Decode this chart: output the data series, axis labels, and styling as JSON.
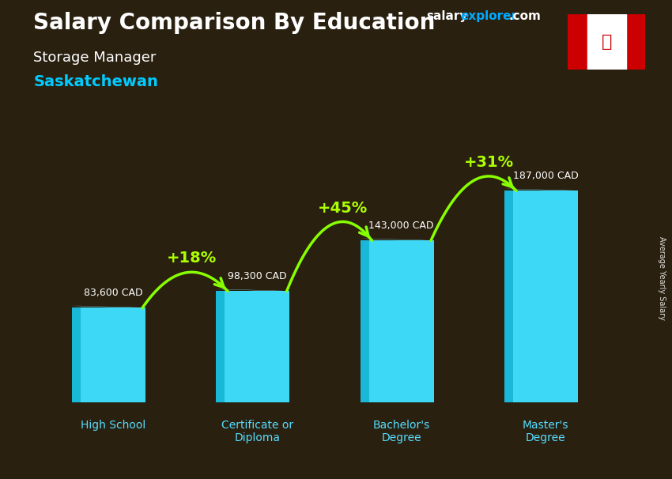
{
  "title_bold": "Salary Comparison By Education",
  "subtitle1": "Storage Manager",
  "subtitle2": "Saskatchewan",
  "watermark_salary": "salary",
  "watermark_explorer": "explorer",
  "watermark_com": ".com",
  "ylabel_rotated": "Average Yearly Salary",
  "categories": [
    "High School",
    "Certificate or\nDiploma",
    "Bachelor's\nDegree",
    "Master's\nDegree"
  ],
  "values": [
    83600,
    98300,
    143000,
    187000
  ],
  "value_labels": [
    "83,600 CAD",
    "98,300 CAD",
    "143,000 CAD",
    "187,000 CAD"
  ],
  "pct_labels": [
    "+18%",
    "+45%",
    "+31%"
  ],
  "bar_face_color": "#3dd8f5",
  "bar_side_color": "#1ab8d8",
  "bar_top_color": "#80eeff",
  "background_color": "#2a2010",
  "title_color": "#ffffff",
  "subtitle1_color": "#ffffff",
  "subtitle2_color": "#00ccff",
  "cat_label_color": "#55ddff",
  "pct_color": "#aaff00",
  "value_color": "#ffffff",
  "arrow_color": "#88ff00",
  "watermark_color1": "#ffffff",
  "watermark_color2": "#00aaff",
  "flag_red": "#cc0000",
  "flag_white": "#ffffff"
}
